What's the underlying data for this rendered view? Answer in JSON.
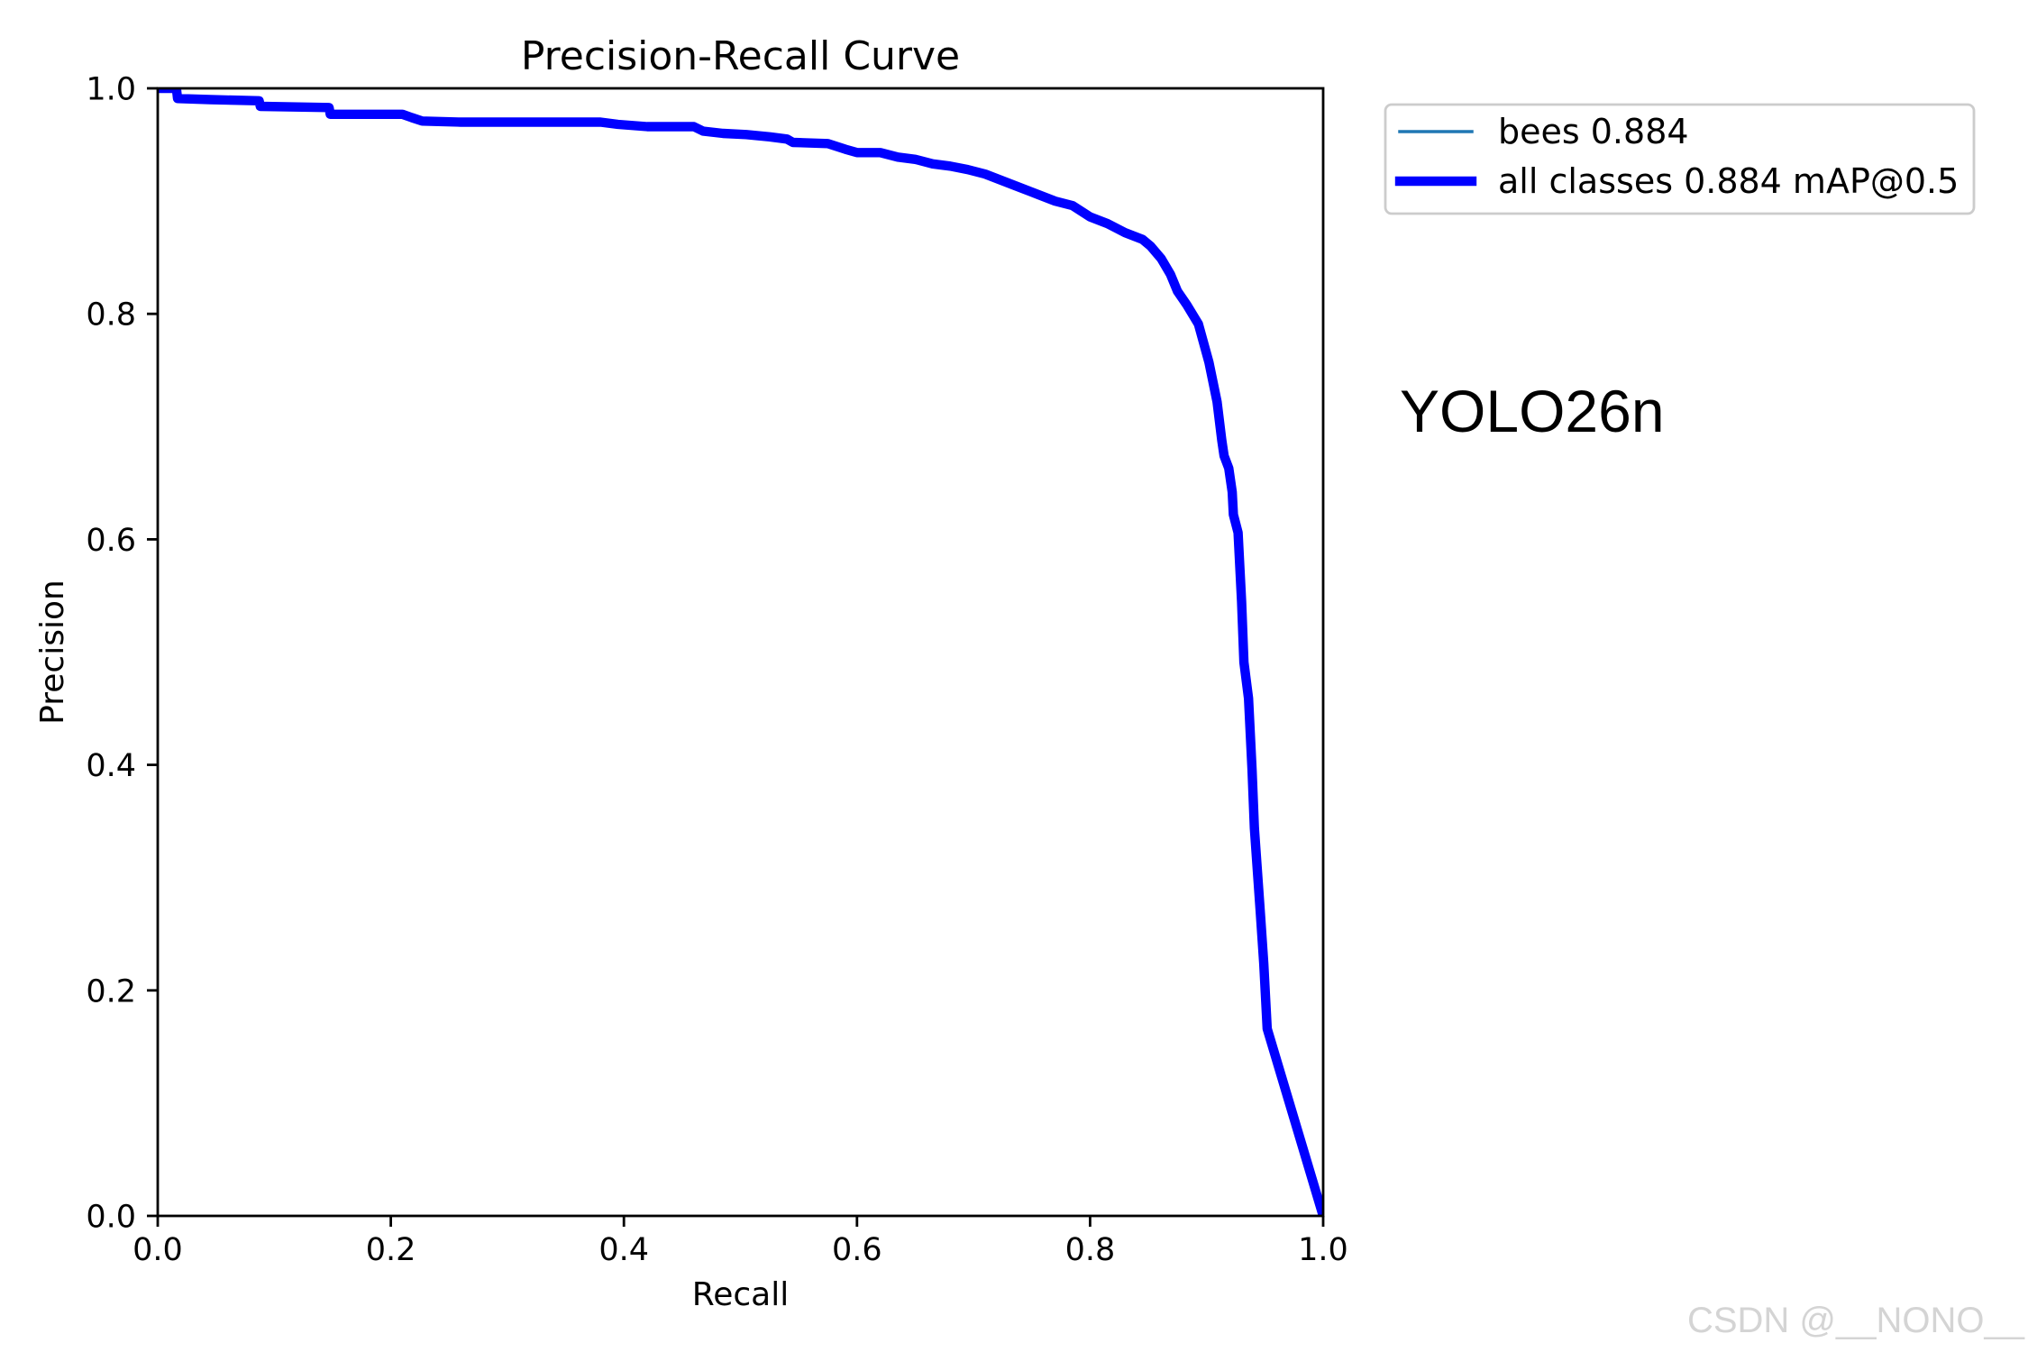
{
  "chart_data": {
    "type": "line",
    "title": "Precision-Recall Curve",
    "xlabel": "Recall",
    "ylabel": "Precision",
    "xlim": [
      0,
      1
    ],
    "ylim": [
      0,
      1
    ],
    "xticks": [
      "0.0",
      "0.2",
      "0.4",
      "0.6",
      "0.8",
      "1.0"
    ],
    "yticks": [
      "0.0",
      "0.2",
      "0.4",
      "0.6",
      "0.8",
      "1.0"
    ],
    "grid": false,
    "legend_position": "outside-right-top",
    "x": [
      0.0,
      0.016,
      0.017,
      0.045,
      0.087,
      0.088,
      0.147,
      0.148,
      0.21,
      0.218,
      0.227,
      0.26,
      0.38,
      0.395,
      0.42,
      0.46,
      0.468,
      0.485,
      0.505,
      0.525,
      0.54,
      0.545,
      0.575,
      0.59,
      0.6,
      0.62,
      0.635,
      0.65,
      0.665,
      0.68,
      0.695,
      0.71,
      0.725,
      0.74,
      0.755,
      0.77,
      0.785,
      0.8,
      0.815,
      0.83,
      0.845,
      0.852,
      0.861,
      0.869,
      0.875,
      0.883,
      0.893,
      0.902,
      0.909,
      0.913,
      0.915,
      0.919,
      0.922,
      0.923,
      0.927,
      0.93,
      0.932,
      0.936,
      0.939,
      0.941,
      0.946,
      0.949,
      0.952,
      1.0
    ],
    "series": [
      {
        "name": "bees 0.884",
        "color": "#1f77b4",
        "values": [
          1.0,
          1.0,
          0.991,
          0.99,
          0.989,
          0.984,
          0.983,
          0.977,
          0.977,
          0.974,
          0.971,
          0.97,
          0.97,
          0.968,
          0.966,
          0.966,
          0.962,
          0.96,
          0.959,
          0.957,
          0.955,
          0.952,
          0.951,
          0.946,
          0.943,
          0.943,
          0.939,
          0.937,
          0.933,
          0.931,
          0.928,
          0.924,
          0.918,
          0.912,
          0.906,
          0.9,
          0.896,
          0.886,
          0.88,
          0.872,
          0.866,
          0.86,
          0.849,
          0.835,
          0.82,
          0.808,
          0.791,
          0.757,
          0.722,
          0.688,
          0.674,
          0.663,
          0.642,
          0.622,
          0.606,
          0.545,
          0.491,
          0.459,
          0.396,
          0.344,
          0.27,
          0.224,
          0.166,
          0.0
        ]
      },
      {
        "name": "all classes 0.884 mAP@0.5",
        "color": "#0000ff",
        "values": [
          1.0,
          1.0,
          0.991,
          0.99,
          0.989,
          0.984,
          0.983,
          0.977,
          0.977,
          0.974,
          0.971,
          0.97,
          0.97,
          0.968,
          0.966,
          0.966,
          0.962,
          0.96,
          0.959,
          0.957,
          0.955,
          0.952,
          0.951,
          0.946,
          0.943,
          0.943,
          0.939,
          0.937,
          0.933,
          0.931,
          0.928,
          0.924,
          0.918,
          0.912,
          0.906,
          0.9,
          0.896,
          0.886,
          0.88,
          0.872,
          0.866,
          0.86,
          0.849,
          0.835,
          0.82,
          0.808,
          0.791,
          0.757,
          0.722,
          0.688,
          0.674,
          0.663,
          0.642,
          0.622,
          0.606,
          0.545,
          0.491,
          0.459,
          0.396,
          0.344,
          0.27,
          0.224,
          0.166,
          0.0
        ]
      }
    ],
    "annotations": [
      "YOLO26n"
    ]
  },
  "watermark": "CSDN @__NONO__"
}
